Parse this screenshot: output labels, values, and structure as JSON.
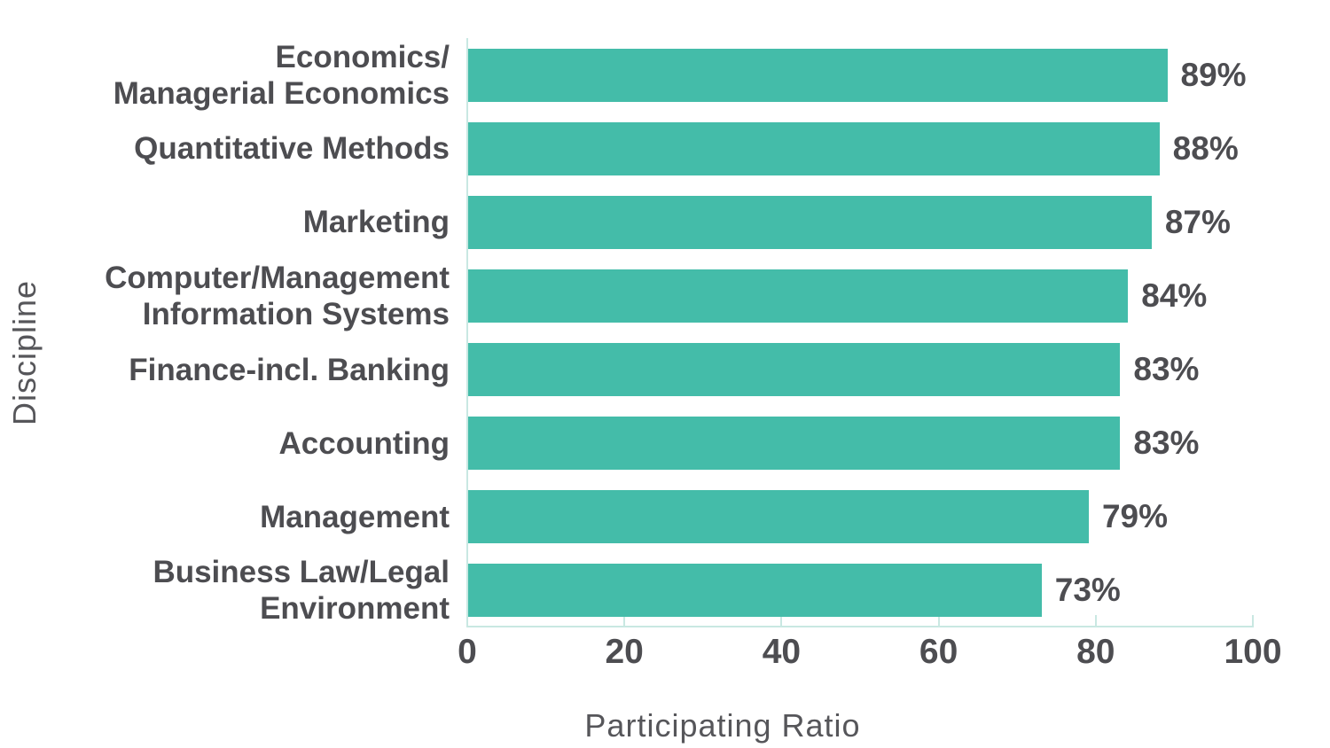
{
  "chart_data": {
    "type": "bar",
    "orientation": "horizontal",
    "categories": [
      "Economics/\nManagerial Economics",
      "Quantitative Methods",
      "Marketing",
      "Computer/Management\nInformation Systems",
      "Finance-incl. Banking",
      "Accounting",
      "Management",
      "Business Law/Legal\nEnvironment"
    ],
    "values": [
      89,
      88,
      87,
      84,
      83,
      83,
      79,
      73
    ],
    "value_suffix": "%",
    "title": "",
    "xlabel": "Participating Ratio",
    "ylabel": "Discipline",
    "xlim": [
      0,
      100
    ],
    "xticks": [
      0,
      20,
      40,
      60,
      80,
      100
    ],
    "grid": "none",
    "legend": "none",
    "colors": {
      "bar": "#44bca9",
      "axis_line": "#c9e8e2",
      "tick_line": "#c9e8e2",
      "label_text": "#4d4d51",
      "axis_title_text": "#56565a",
      "background": "#ffffff"
    }
  }
}
